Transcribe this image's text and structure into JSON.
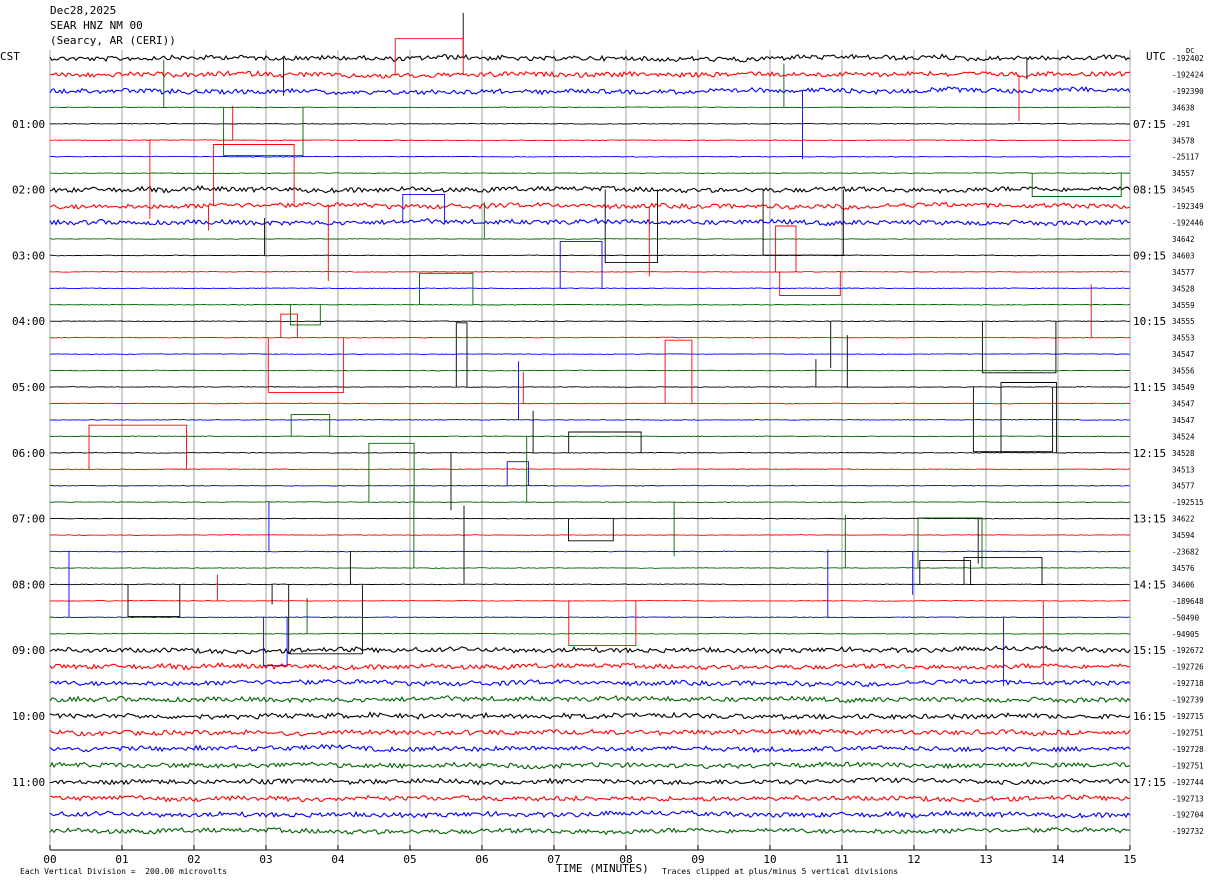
{
  "header": {
    "date": "Dec28,2025",
    "station": "SEAR HNZ NM 00",
    "location": "(Searcy, AR (CERI))"
  },
  "left_timezone": "CST",
  "right_timezone": "UTC",
  "dc_label": "DC",
  "footer": {
    "scale_note": "Each Vertical Division =  200.00 microvolts",
    "xlabel": "TIME (MINUTES)",
    "clip_note": "Traces clipped at plus/minus 5 vertical divisions"
  },
  "colors": {
    "black": "#000000",
    "red": "#ff0000",
    "blue": "#0000ff",
    "green": "#006400",
    "grid": "#666666"
  },
  "chart_data": {
    "type": "line",
    "title": "SEAR HNZ NM 00",
    "xlabel": "TIME (MINUTES)",
    "x_ticks": [
      "00",
      "01",
      "02",
      "03",
      "04",
      "05",
      "06",
      "07",
      "08",
      "09",
      "10",
      "11",
      "12",
      "13",
      "14",
      "15"
    ],
    "xlim": [
      0,
      15
    ],
    "left_hour_labels": [
      "01:00",
      "02:00",
      "03:00",
      "04:00",
      "05:00",
      "06:00",
      "07:00",
      "08:00",
      "09:00",
      "10:00",
      "11:00"
    ],
    "right_hour_labels": [
      "07:15",
      "08:15",
      "09:15",
      "10:15",
      "11:15",
      "12:15",
      "13:15",
      "14:15",
      "15:15",
      "16:15",
      "17:15"
    ],
    "trace_color_cycle": [
      "black",
      "red",
      "blue",
      "green"
    ],
    "dc_offsets": [
      "-192402",
      "-192424",
      "-192390",
      "34638",
      "-291",
      "34578",
      "-25117",
      "34557",
      "34545",
      "-192349",
      "-192446",
      "34642",
      "34603",
      "34577",
      "34528",
      "34559",
      "34555",
      "34553",
      "34547",
      "34556",
      "34549",
      "34547",
      "34547",
      "34524",
      "34528",
      "34513",
      "34577",
      "-192515",
      "34622",
      "34594",
      "-23682",
      "34576",
      "34606",
      "-189648",
      "-50490",
      "-94905",
      "-192672",
      "-192726",
      "-192718",
      "-192739",
      "-192715",
      "-192751",
      "-192728",
      "-192751",
      "-192744",
      "-192713",
      "-192704",
      "-192732"
    ],
    "noisy_traces": [
      0,
      1,
      2,
      8,
      9,
      10,
      36,
      37,
      38,
      39,
      40,
      41,
      42,
      43,
      44,
      45,
      46,
      47
    ]
  }
}
